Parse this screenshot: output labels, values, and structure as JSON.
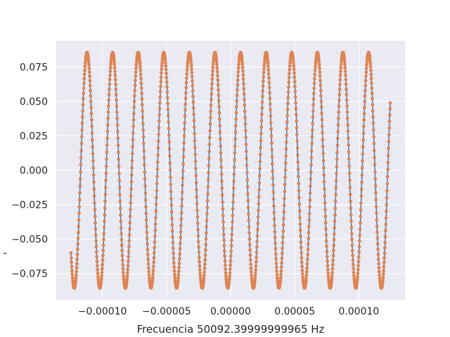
{
  "chart_data": {
    "type": "line",
    "title": "",
    "xlabel": "Frecuencia 50092.39999999965 Hz",
    "ylabel": "-",
    "xlim": [
      -0.000136,
      0.000136
    ],
    "ylim": [
      -0.094,
      0.094
    ],
    "x_ticks": [
      -0.0001,
      -5e-05,
      0.0,
      5e-05,
      0.0001
    ],
    "x_tick_labels": [
      "−0.00010",
      "−0.00005",
      "0.00000",
      "0.00005",
      "0.00010"
    ],
    "y_ticks": [
      0.075,
      0.05,
      0.025,
      0.0,
      -0.025,
      -0.05,
      -0.075
    ],
    "y_tick_labels": [
      "0.075",
      "0.050",
      "0.025",
      "0.000",
      "−0.025",
      "−0.050",
      "−0.075"
    ],
    "grid": true,
    "background": "#eaeaf2",
    "series": [
      {
        "style": "line",
        "color": "#4c72b0",
        "signal": {
          "kind": "sinusoid",
          "amplitude": 0.0855,
          "frequency_hz": 50092.4,
          "x_start": -0.0001245,
          "x_end": 0.0001245,
          "start_value": -0.06,
          "end_value": 0.054
        }
      },
      {
        "style": "markers",
        "color": "#dd8452",
        "signal": {
          "kind": "sinusoid",
          "amplitude": 0.0855,
          "frequency_hz": 50092.4,
          "x_start": -0.0001245,
          "x_end": 0.0001245,
          "start_value": -0.06,
          "end_value": 0.054
        }
      }
    ]
  }
}
